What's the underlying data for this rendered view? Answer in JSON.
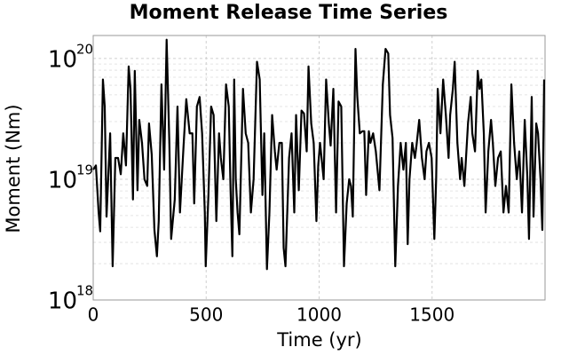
{
  "chart_data": {
    "type": "line",
    "title": "Moment Release Time Series",
    "x_label": "Time (yr)",
    "y_label": "Moment (Nm)",
    "log_y": true,
    "grid": true,
    "color": "#000000",
    "xlim": [
      0,
      2000
    ],
    "xticks": [
      0,
      500,
      1000,
      1500
    ],
    "ylim": [
      1e+18,
      1.55e+20
    ],
    "yticks": [
      {
        "value": 1e+18,
        "label": "10",
        "exponent": "18"
      },
      {
        "value": 1e+19,
        "label": "10",
        "exponent": "19"
      },
      {
        "value": 1e+20,
        "label": "10",
        "exponent": "20"
      }
    ],
    "yminorticks": [
      2e+18,
      3e+18,
      4e+18,
      5e+18,
      6e+18,
      7e+18,
      8e+18,
      9e+18,
      2e+19,
      3e+19,
      4e+19,
      5e+19,
      6e+19,
      7e+19,
      8e+19,
      9e+19
    ],
    "x": [
      0,
      12,
      24,
      31,
      43,
      51,
      59,
      75,
      86,
      98,
      110,
      122,
      133,
      145,
      157,
      165,
      176,
      184,
      196,
      204,
      216,
      227,
      239,
      247,
      259,
      271,
      282,
      290,
      302,
      314,
      325,
      337,
      345,
      361,
      373,
      384,
      400,
      412,
      427,
      439,
      447,
      459,
      471,
      482,
      494,
      498,
      510,
      522,
      533,
      545,
      557,
      565,
      576,
      588,
      600,
      608,
      616,
      624,
      631,
      639,
      647,
      663,
      675,
      686,
      698,
      710,
      725,
      737,
      749,
      757,
      769,
      780,
      792,
      804,
      812,
      824,
      835,
      843,
      851,
      867,
      878,
      890,
      898,
      910,
      922,
      933,
      945,
      953,
      965,
      976,
      988,
      996,
      1004,
      1020,
      1031,
      1043,
      1051,
      1063,
      1075,
      1086,
      1098,
      1110,
      1122,
      1133,
      1141,
      1149,
      1161,
      1169,
      1180,
      1192,
      1200,
      1208,
      1220,
      1227,
      1239,
      1251,
      1267,
      1282,
      1294,
      1306,
      1314,
      1325,
      1337,
      1349,
      1361,
      1373,
      1384,
      1392,
      1400,
      1412,
      1424,
      1431,
      1443,
      1455,
      1467,
      1475,
      1486,
      1498,
      1510,
      1518,
      1525,
      1537,
      1549,
      1561,
      1573,
      1580,
      1592,
      1600,
      1612,
      1624,
      1631,
      1643,
      1659,
      1671,
      1678,
      1690,
      1702,
      1710,
      1718,
      1729,
      1737,
      1749,
      1761,
      1769,
      1780,
      1792,
      1804,
      1816,
      1827,
      1839,
      1851,
      1863,
      1875,
      1886,
      1898,
      1910,
      1922,
      1929,
      1941,
      1949,
      1961,
      1969,
      1980,
      1988,
      1996
    ],
    "values": [
      1.2e+19,
      1.3e+19,
      5.3e+18,
      3.7e+18,
      6.7e+19,
      4e+19,
      4.9e+18,
      2.4e+19,
      1.9e+18,
      1.5e+19,
      1.5e+19,
      1.1e+19,
      2.4e+19,
      1.3e+19,
      8.6e+19,
      5.6e+19,
      6.8e+18,
      7.9e+19,
      8.1e+18,
      3.1e+19,
      2e+19,
      1e+19,
      8.8e+18,
      2.9e+19,
      1.6e+19,
      3.8e+18,
      2.3e+18,
      4.5e+18,
      6.1e+19,
      1.2e+19,
      1.43e+20,
      2e+19,
      3.2e+18,
      6.8e+18,
      4e+19,
      5.3e+18,
      1.9e+19,
      4.6e+19,
      2.4e+19,
      2.4e+19,
      6.3e+18,
      4e+19,
      4.8e+19,
      2.4e+19,
      5.3e+18,
      1.9e+18,
      7.4e+18,
      4e+19,
      3.4e+19,
      4.5e+18,
      2.4e+19,
      1.5e+19,
      1e+19,
      6.1e+19,
      4e+19,
      8.1e+18,
      2.3e+18,
      6.7e+19,
      1e+19,
      5.3e+18,
      3.5e+18,
      5.6e+19,
      2.4e+19,
      2e+19,
      5.3e+18,
      1e+19,
      9.4e+19,
      6.7e+19,
      7.4e+18,
      2.4e+19,
      1.8e+18,
      5.3e+18,
      3.4e+19,
      1.7e+19,
      1.2e+19,
      2e+19,
      2e+19,
      2.7e+18,
      1.9e+18,
      1.5e+19,
      2.4e+19,
      5.3e+18,
      3.4e+19,
      8.1e+18,
      3.7e+19,
      3.5e+19,
      1.7e+19,
      8.6e+19,
      2.9e+19,
      2e+19,
      4.5e+18,
      1.3e+19,
      2e+19,
      1e+19,
      6.7e+19,
      2.9e+19,
      1.9e+19,
      5.6e+19,
      5.3e+18,
      4.4e+19,
      4e+19,
      1.9e+18,
      6.3e+18,
      1e+19,
      8.8e+18,
      4.9e+18,
      1.2e+20,
      4.8e+19,
      2.4e+19,
      2.5e+19,
      2.5e+19,
      7.4e+18,
      2.5e+19,
      2e+19,
      2.4e+19,
      1.7e+19,
      8.1e+18,
      6.1e+19,
      1.2e+20,
      1.1e+20,
      3.4e+19,
      2.2e+19,
      1.9e+18,
      8.8e+18,
      2e+19,
      1.2e+19,
      2e+19,
      2.9e+18,
      1e+19,
      2e+19,
      1.5e+19,
      1.9e+19,
      3.1e+19,
      1.5e+19,
      1e+19,
      1.7e+19,
      2e+19,
      1.5e+19,
      3.2e+18,
      1e+19,
      5.6e+19,
      2.4e+19,
      6.7e+19,
      3.4e+19,
      1.5e+19,
      3.4e+19,
      5.6e+19,
      9.4e+19,
      2e+19,
      1e+19,
      1.5e+19,
      8.8e+18,
      2.9e+19,
      4.8e+19,
      2.4e+19,
      1.7e+19,
      7.9e+19,
      5.6e+19,
      6.7e+19,
      2.4e+19,
      5.3e+18,
      1.7e+19,
      3.1e+19,
      2e+19,
      8.8e+18,
      1.5e+19,
      1.7e+19,
      5.3e+18,
      8.8e+18,
      5.3e+18,
      6.1e+19,
      2e+19,
      1e+19,
      1.7e+19,
      5.3e+18,
      3.1e+19,
      1e+19,
      3.2e+18,
      4.8e+19,
      4.9e+18,
      2.9e+19,
      2.4e+19,
      1e+19,
      3.8e+18,
      6.7e+19
    ]
  }
}
